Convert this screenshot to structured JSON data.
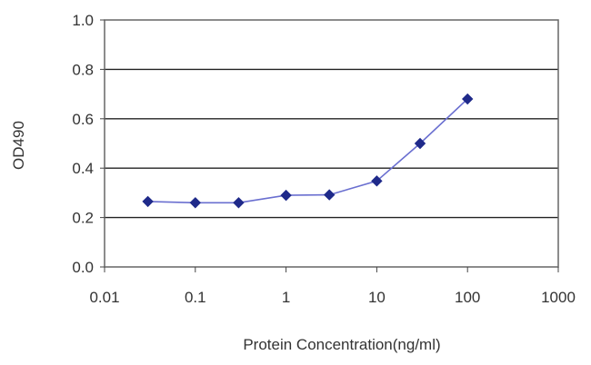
{
  "chart_data": {
    "type": "line",
    "title": "",
    "xlabel": "Protein Concentration(ng/ml)",
    "ylabel": "OD490",
    "x_scale": "log",
    "xlim": [
      0.01,
      1000
    ],
    "ylim": [
      0.0,
      1.0
    ],
    "x_ticks": [
      "0.01",
      "0.1",
      "1",
      "10",
      "100",
      "1000"
    ],
    "y_ticks": [
      "0.0",
      "0.2",
      "0.4",
      "0.6",
      "0.8",
      "1.0"
    ],
    "grid": "horizontal",
    "legend": "none",
    "series_color": "#1f2a8a",
    "plot_border_color": "#666666",
    "series": [
      {
        "x": [
          0.03,
          0.1,
          0.3,
          1,
          3,
          10,
          30,
          100
        ],
        "values": [
          0.265,
          0.26,
          0.26,
          0.29,
          0.292,
          0.348,
          0.5,
          0.68
        ]
      }
    ]
  }
}
